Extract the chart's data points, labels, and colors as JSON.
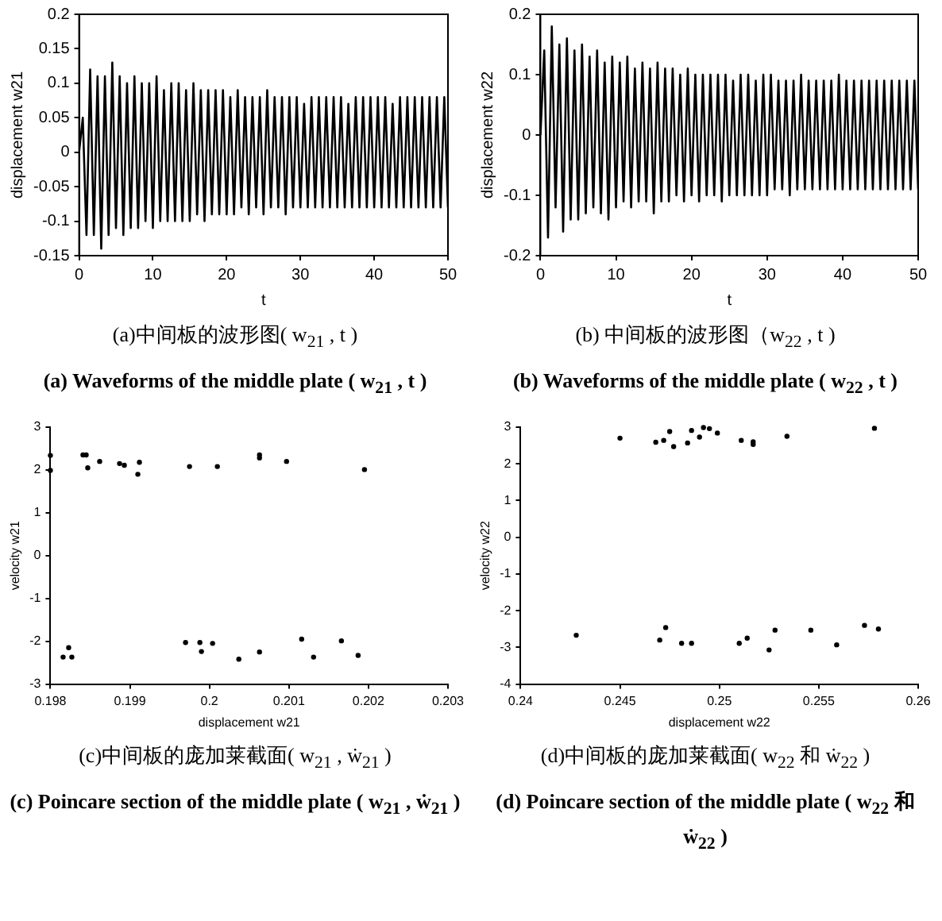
{
  "chart_data": [
    {
      "type": "line",
      "title": "(a)中间板的波形图( w$_{21}$ , t )",
      "subtitle": "(a) Waveforms of the middle plate ( w$_{21}$ , t )",
      "xlabel": "t",
      "ylabel": "displacement w21",
      "marker": "none",
      "grid": false,
      "xlim": [
        0,
        50
      ],
      "xticks": [
        0,
        10,
        20,
        30,
        40,
        50
      ],
      "ylim": [
        -0.15,
        0.2
      ],
      "yticks": [
        -0.15,
        -0.1,
        -0.05,
        0,
        0.05,
        0.1,
        0.15,
        0.2
      ],
      "x": [
        0,
        0.5,
        1,
        1.5,
        2,
        2.5,
        3,
        3.5,
        4,
        4.5,
        5,
        5.5,
        6,
        6.5,
        7,
        7.5,
        8,
        8.5,
        9,
        9.5,
        10,
        10.5,
        11,
        11.5,
        12,
        12.5,
        13,
        13.5,
        14,
        14.5,
        15,
        15.5,
        16,
        16.5,
        17,
        17.5,
        18,
        18.5,
        19,
        19.5,
        20,
        20.5,
        21,
        21.5,
        22,
        22.5,
        23,
        23.5,
        24,
        24.5,
        25,
        25.5,
        26,
        26.5,
        27,
        27.5,
        28,
        28.5,
        29,
        29.5,
        30,
        30.5,
        31,
        31.5,
        32,
        32.5,
        33,
        33.5,
        34,
        34.5,
        35,
        35.5,
        36,
        36.5,
        37,
        37.5,
        38,
        38.5,
        39,
        39.5,
        40,
        40.5,
        41,
        41.5,
        42,
        42.5,
        43,
        43.5,
        44,
        44.5,
        45,
        45.5,
        46,
        46.5,
        47,
        47.5,
        48,
        48.5,
        49,
        49.5,
        50
      ],
      "series": [
        {
          "color": "#000000",
          "values": [
            0,
            0.05,
            -0.12,
            0.12,
            -0.12,
            0.11,
            -0.14,
            0.11,
            -0.12,
            0.13,
            -0.11,
            0.11,
            -0.12,
            0.1,
            -0.11,
            0.11,
            -0.11,
            0.1,
            -0.1,
            0.1,
            -0.11,
            0.11,
            -0.1,
            0.09,
            -0.1,
            0.1,
            -0.1,
            0.1,
            -0.1,
            0.09,
            -0.1,
            0.1,
            -0.09,
            0.09,
            -0.1,
            0.09,
            -0.09,
            0.09,
            -0.09,
            0.09,
            -0.09,
            0.08,
            -0.09,
            0.09,
            -0.08,
            0.08,
            -0.09,
            0.08,
            -0.08,
            0.08,
            -0.09,
            0.09,
            -0.08,
            0.08,
            -0.08,
            0.08,
            -0.09,
            0.08,
            -0.08,
            0.08,
            -0.08,
            0.07,
            -0.08,
            0.08,
            -0.08,
            0.08,
            -0.08,
            0.08,
            -0.08,
            0.08,
            -0.08,
            0.08,
            -0.08,
            0.07,
            -0.08,
            0.08,
            -0.08,
            0.08,
            -0.08,
            0.08,
            -0.08,
            0.08,
            -0.08,
            0.08,
            -0.08,
            0.07,
            -0.08,
            0.08,
            -0.08,
            0.08,
            -0.08,
            0.08,
            -0.08,
            0.08,
            -0.08,
            0.08,
            -0.08,
            0.08,
            -0.08,
            0.08,
            -0.08
          ]
        }
      ]
    },
    {
      "type": "line",
      "title": "(b) 中间板的波形图（w$_{22}$ , t )",
      "subtitle": "(b) Waveforms of the middle plate ( w$_{22}$ , t )",
      "xlabel": "t",
      "ylabel": "displacement w22",
      "marker": "none",
      "grid": false,
      "xlim": [
        0,
        50
      ],
      "xticks": [
        0,
        10,
        20,
        30,
        40,
        50
      ],
      "ylim": [
        -0.2,
        0.2
      ],
      "yticks": [
        -0.2,
        -0.1,
        0,
        0.1,
        0.2
      ],
      "x": [
        0,
        0.5,
        1,
        1.5,
        2,
        2.5,
        3,
        3.5,
        4,
        4.5,
        5,
        5.5,
        6,
        6.5,
        7,
        7.5,
        8,
        8.5,
        9,
        9.5,
        10,
        10.5,
        11,
        11.5,
        12,
        12.5,
        13,
        13.5,
        14,
        14.5,
        15,
        15.5,
        16,
        16.5,
        17,
        17.5,
        18,
        18.5,
        19,
        19.5,
        20,
        20.5,
        21,
        21.5,
        22,
        22.5,
        23,
        23.5,
        24,
        24.5,
        25,
        25.5,
        26,
        26.5,
        27,
        27.5,
        28,
        28.5,
        29,
        29.5,
        30,
        30.5,
        31,
        31.5,
        32,
        32.5,
        33,
        33.5,
        34,
        34.5,
        35,
        35.5,
        36,
        36.5,
        37,
        37.5,
        38,
        38.5,
        39,
        39.5,
        40,
        40.5,
        41,
        41.5,
        42,
        42.5,
        43,
        43.5,
        44,
        44.5,
        45,
        45.5,
        46,
        46.5,
        47,
        47.5,
        48,
        48.5,
        49,
        49.5,
        50
      ],
      "series": [
        {
          "color": "#000000",
          "values": [
            0,
            0.14,
            -0.17,
            0.18,
            -0.12,
            0.15,
            -0.16,
            0.16,
            -0.14,
            0.14,
            -0.14,
            0.15,
            -0.13,
            0.13,
            -0.12,
            0.14,
            -0.13,
            0.12,
            -0.14,
            0.13,
            -0.12,
            0.12,
            -0.11,
            0.13,
            -0.12,
            0.11,
            -0.11,
            0.12,
            -0.11,
            0.11,
            -0.13,
            0.12,
            -0.11,
            0.11,
            -0.11,
            0.11,
            -0.1,
            0.1,
            -0.11,
            0.11,
            -0.1,
            0.1,
            -0.11,
            0.1,
            -0.1,
            0.1,
            -0.1,
            0.1,
            -0.11,
            0.1,
            -0.1,
            0.09,
            -0.1,
            0.1,
            -0.1,
            0.1,
            -0.1,
            0.09,
            -0.1,
            0.1,
            -0.1,
            0.1,
            -0.09,
            0.09,
            -0.09,
            0.09,
            -0.1,
            0.09,
            -0.09,
            0.1,
            -0.09,
            0.09,
            -0.09,
            0.09,
            -0.09,
            0.09,
            -0.09,
            0.09,
            -0.09,
            0.1,
            -0.09,
            0.09,
            -0.09,
            0.09,
            -0.09,
            0.09,
            -0.09,
            0.09,
            -0.09,
            0.09,
            -0.09,
            0.09,
            -0.09,
            0.09,
            -0.09,
            0.09,
            -0.09,
            0.09,
            -0.09,
            0.09,
            -0.09
          ]
        }
      ]
    },
    {
      "type": "scatter",
      "title": "(c)中间板的庞加莱截面( w$_{21}$ , ẇ$_{21}$ )",
      "subtitle": "(c) Poincare section of the middle plate ( w$_{21}$ , ẇ$_{21}$ )",
      "xlabel": "displacement w21",
      "ylabel": "velocity w21",
      "marker": "circle",
      "grid": false,
      "xlim": [
        0.198,
        0.203
      ],
      "xticks": [
        0.198,
        0.199,
        0.2,
        0.201,
        0.202,
        0.203
      ],
      "ylim": [
        -3,
        3
      ],
      "yticks": [
        -3,
        -2,
        -1,
        0,
        1,
        2,
        3
      ],
      "series": [
        {
          "color": "#000000",
          "x": [
            0.198,
            0.198,
            0.19841,
            0.19845,
            0.19847,
            0.19862,
            0.19887,
            0.19893,
            0.1991,
            0.19912,
            0.19975,
            0.2001,
            0.20063,
            0.20063,
            0.20097,
            0.20195,
            0.19816,
            0.19823,
            0.19827,
            0.1997,
            0.19988,
            0.1999,
            0.20004,
            0.20037,
            0.20063,
            0.20116,
            0.20131,
            0.20166,
            0.20187
          ],
          "values": [
            2.34,
            1.99,
            2.35,
            2.35,
            2.05,
            2.2,
            2.15,
            2.11,
            1.9,
            2.18,
            2.08,
            2.08,
            2.35,
            2.28,
            2.2,
            2.01,
            -2.37,
            -2.15,
            -2.37,
            -2.03,
            -2.03,
            -2.24,
            -2.05,
            -2.42,
            -2.25,
            -1.95,
            -2.37,
            -1.99,
            -2.33
          ]
        }
      ]
    },
    {
      "type": "scatter",
      "title": "(d)中间板的庞加莱截面( w$_{22}$ 和 ẇ$_{22}$ )",
      "subtitle": "(d) Poincare section of the middle plate ( w$_{22}$ 和 ẇ$_{22}$ )",
      "xlabel": "displacement w22",
      "ylabel": "velocity w22",
      "marker": "circle",
      "grid": false,
      "xlim": [
        0.24,
        0.26
      ],
      "xticks": [
        0.24,
        0.245,
        0.25,
        0.255,
        0.26
      ],
      "ylim": [
        -4,
        3
      ],
      "yticks": [
        -4,
        -3,
        -2,
        -1,
        0,
        1,
        2,
        3
      ],
      "series": [
        {
          "color": "#000000",
          "x": [
            0.245,
            0.2468,
            0.2472,
            0.2475,
            0.2477,
            0.2484,
            0.2486,
            0.249,
            0.2492,
            0.2495,
            0.2499,
            0.2511,
            0.2517,
            0.2517,
            0.2534,
            0.2578,
            0.2428,
            0.247,
            0.2473,
            0.2481,
            0.2486,
            0.251,
            0.2514,
            0.2525,
            0.2528,
            0.2546,
            0.2559,
            0.2573,
            0.258
          ],
          "values": [
            2.7,
            2.59,
            2.64,
            2.88,
            2.47,
            2.57,
            2.91,
            2.73,
            2.99,
            2.96,
            2.84,
            2.64,
            2.6,
            2.53,
            2.75,
            2.97,
            -2.67,
            -2.8,
            -2.46,
            -2.89,
            -2.89,
            -2.89,
            -2.75,
            -3.07,
            -2.53,
            -2.53,
            -2.93,
            -2.4,
            -2.5
          ]
        }
      ]
    }
  ]
}
